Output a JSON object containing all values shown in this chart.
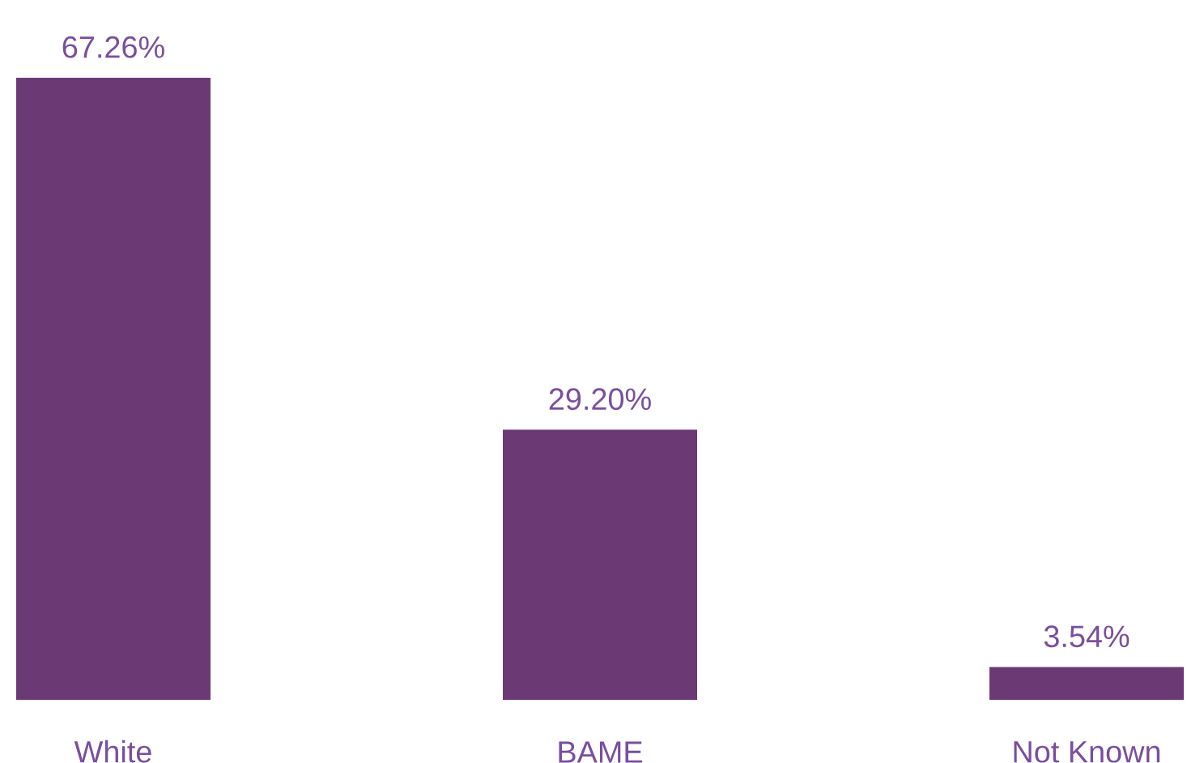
{
  "chart_data": {
    "type": "bar",
    "categories": [
      "White",
      "BAME",
      "Not Known"
    ],
    "values": [
      67.26,
      29.2,
      3.54
    ],
    "value_labels": [
      "67.26%",
      "29.20%",
      "3.54%"
    ],
    "color": "#6b3a75"
  }
}
